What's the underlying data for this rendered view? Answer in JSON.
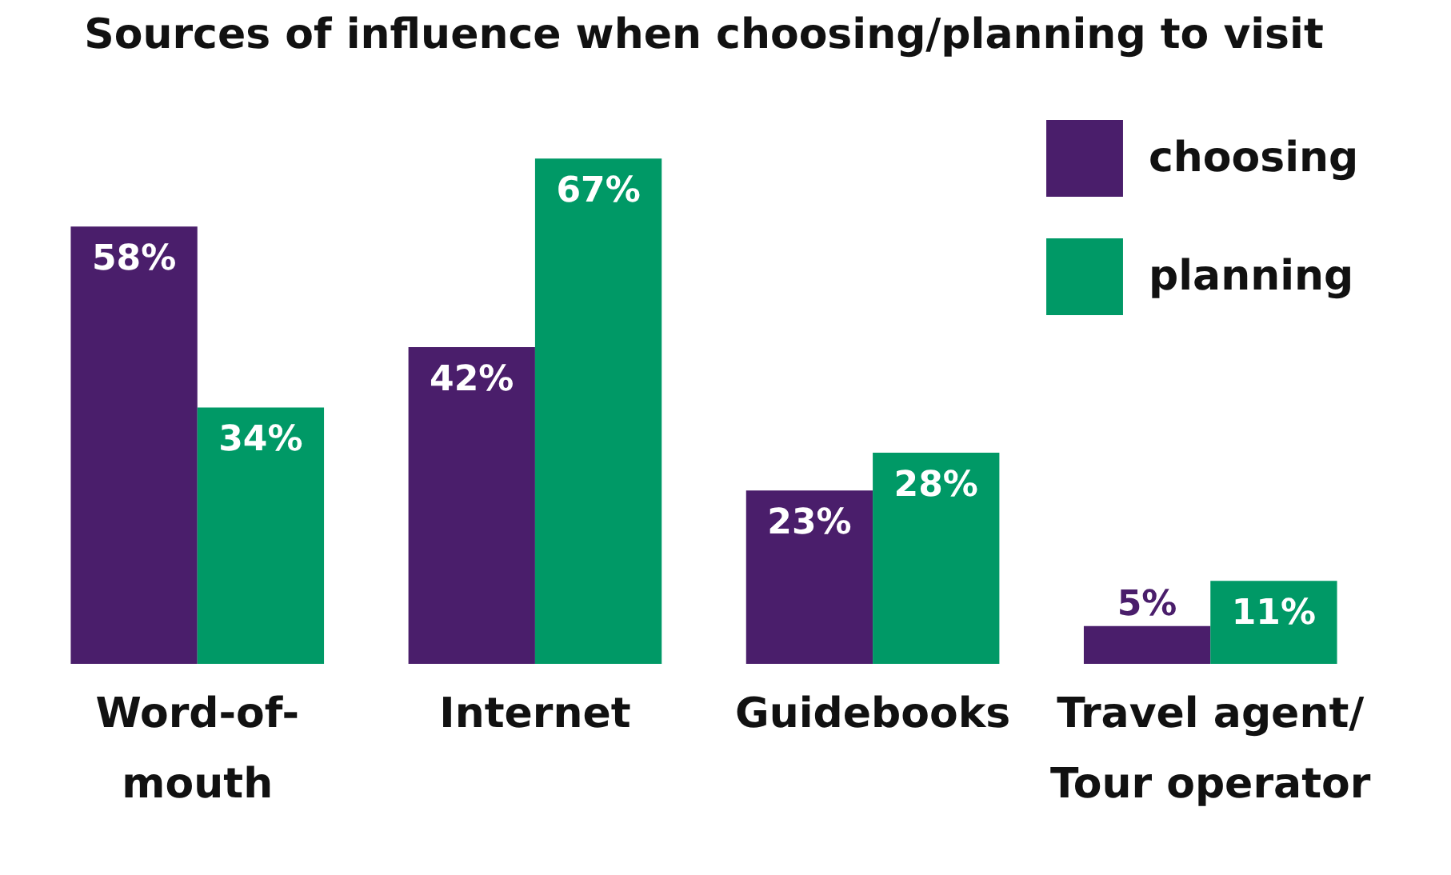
{
  "chart_data": {
    "type": "bar",
    "title": "Sources of influence when choosing/planning to visit",
    "categories": [
      "Word-of-\nmouth",
      "Internet",
      "Guidebooks",
      "Travel agent/\nTour operator"
    ],
    "series": [
      {
        "name": "choosing",
        "color": "#4a1e6b",
        "values": [
          58,
          42,
          23,
          5
        ],
        "value_labels": [
          "58%",
          "42%",
          "23%",
          "5%"
        ]
      },
      {
        "name": "planning",
        "color": "#009966",
        "values": [
          34,
          67,
          28,
          11
        ],
        "value_labels": [
          "34%",
          "67%",
          "28%",
          "11%"
        ]
      }
    ],
    "legend": "top right",
    "tick_labels": "x",
    "grid": false
  }
}
